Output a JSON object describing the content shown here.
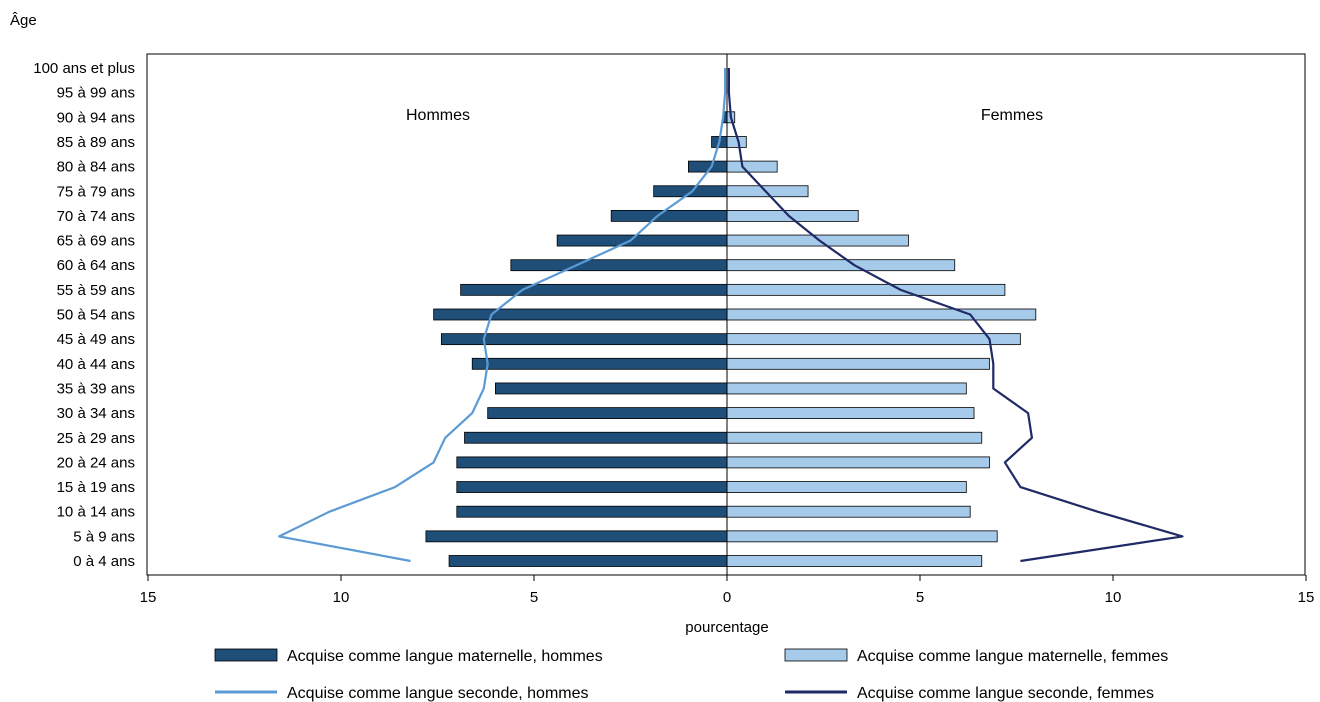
{
  "chart_data": {
    "type": "bar",
    "orientation": "horizontal-population-pyramid",
    "y_axis_title": "Âge",
    "x_axis_title": "pourcentage",
    "left_label": "Hommes",
    "right_label": "Femmes",
    "x_ticks": [
      "15",
      "10",
      "5",
      "0",
      "5",
      "10",
      "15"
    ],
    "x_range": [
      -15,
      15
    ],
    "grid": false,
    "legend_position": "bottom",
    "categories": [
      "0 à 4 ans",
      "5 à 9 ans",
      "10 à 14 ans",
      "15 à 19 ans",
      "20 à 24 ans",
      "25 à 29 ans",
      "30 à 34 ans",
      "35 à 39 ans",
      "40 à 44 ans",
      "45 à 49 ans",
      "50 à 54 ans",
      "55 à 59 ans",
      "60 à 64 ans",
      "65 à 69 ans",
      "70 à 74 ans",
      "75 à 79 ans",
      "80 à 84 ans",
      "85 à 89 ans",
      "90 à 94 ans",
      "95 à 99 ans",
      "100 ans et plus"
    ],
    "series": [
      {
        "name": "Acquise comme langue maternelle, hommes",
        "kind": "bar",
        "side": "left",
        "color": "#1f4e79",
        "values": [
          7.2,
          7.8,
          7.0,
          7.0,
          7.0,
          6.8,
          6.2,
          6.0,
          6.6,
          7.4,
          7.6,
          6.9,
          5.6,
          4.4,
          3.0,
          1.9,
          1.0,
          0.4,
          0.1,
          0.0,
          0.0
        ]
      },
      {
        "name": "Acquise comme langue maternelle, femmes",
        "kind": "bar",
        "side": "right",
        "color": "#a6cbea",
        "values": [
          6.6,
          7.0,
          6.3,
          6.2,
          6.8,
          6.6,
          6.4,
          6.2,
          6.8,
          7.6,
          8.0,
          7.2,
          5.9,
          4.7,
          3.4,
          2.1,
          1.3,
          0.5,
          0.2,
          0.0,
          0.0
        ]
      },
      {
        "name": "Acquise comme langue seconde, hommes",
        "kind": "line",
        "side": "left",
        "color": "#5b9bd5",
        "values": [
          8.2,
          11.6,
          10.3,
          8.6,
          7.6,
          7.3,
          6.6,
          6.3,
          6.2,
          6.3,
          6.1,
          5.3,
          3.9,
          2.5,
          1.8,
          0.9,
          0.4,
          0.2,
          0.1,
          0.05,
          0.05
        ]
      },
      {
        "name": "Acquise comme langue seconde, femmes",
        "kind": "line",
        "side": "right",
        "color": "#1f2a66",
        "values": [
          7.6,
          11.8,
          9.6,
          7.6,
          7.2,
          7.9,
          7.8,
          6.9,
          6.9,
          6.8,
          6.3,
          4.5,
          3.3,
          2.4,
          1.6,
          1.0,
          0.4,
          0.3,
          0.1,
          0.05,
          0.05
        ]
      }
    ]
  }
}
